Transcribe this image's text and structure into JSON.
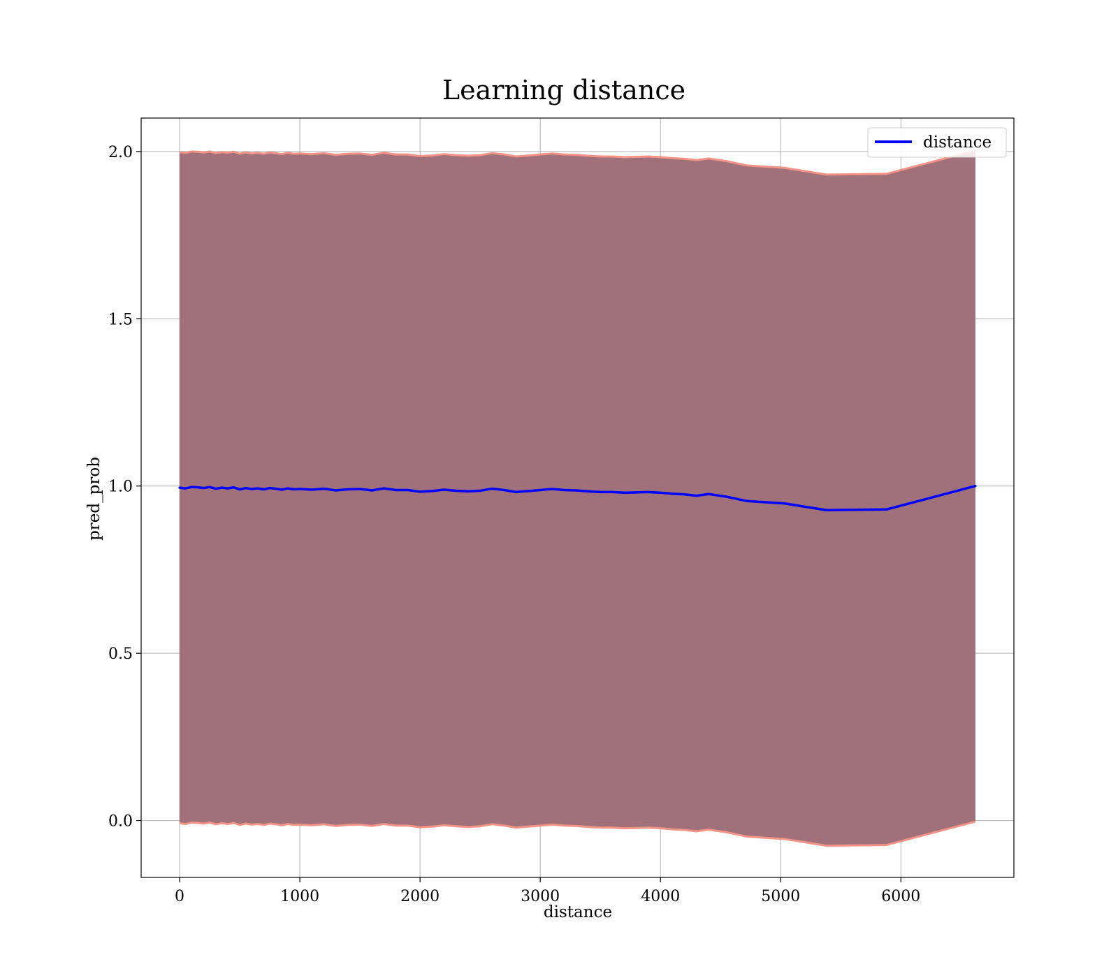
{
  "chart_data": {
    "type": "line",
    "title": "Learning distance",
    "xlabel": "distance",
    "ylabel": "pred_prob",
    "xlim": [
      -320,
      6940
    ],
    "ylim": [
      -0.17,
      2.1
    ],
    "xticks": [
      0,
      1000,
      2000,
      3000,
      4000,
      5000,
      6000
    ],
    "yticks": [
      0.0,
      0.5,
      1.0,
      1.5,
      2.0
    ],
    "xtick_labels": [
      "0",
      "1000",
      "2000",
      "3000",
      "4000",
      "5000",
      "6000"
    ],
    "ytick_labels": [
      "0.0",
      "0.5",
      "1.0",
      "1.5",
      "2.0"
    ],
    "grid": true,
    "legend_position": "top-right",
    "colors": {
      "line": "#0000ff",
      "band_outer": "#f08070",
      "band_inner": "#a0717a",
      "grid": "#b0b0b0"
    },
    "series": [
      {
        "name": "distance",
        "x": [
          0,
          50,
          100,
          150,
          200,
          250,
          300,
          350,
          400,
          450,
          500,
          550,
          600,
          650,
          700,
          750,
          800,
          850,
          900,
          950,
          1000,
          1100,
          1200,
          1300,
          1400,
          1500,
          1600,
          1700,
          1800,
          1900,
          2000,
          2100,
          2200,
          2300,
          2400,
          2500,
          2600,
          2700,
          2800,
          2900,
          3000,
          3100,
          3200,
          3300,
          3400,
          3500,
          3600,
          3700,
          3800,
          3900,
          4000,
          4100,
          4200,
          4300,
          4400,
          4550,
          4720,
          5030,
          5380,
          5880,
          6620
        ],
        "y": [
          0.995,
          0.993,
          0.997,
          0.996,
          0.994,
          0.997,
          0.992,
          0.995,
          0.993,
          0.996,
          0.99,
          0.994,
          0.991,
          0.993,
          0.99,
          0.994,
          0.992,
          0.989,
          0.993,
          0.99,
          0.991,
          0.989,
          0.992,
          0.987,
          0.99,
          0.991,
          0.987,
          0.993,
          0.988,
          0.988,
          0.983,
          0.985,
          0.989,
          0.986,
          0.984,
          0.986,
          0.992,
          0.988,
          0.982,
          0.985,
          0.988,
          0.991,
          0.988,
          0.987,
          0.984,
          0.982,
          0.982,
          0.98,
          0.981,
          0.982,
          0.98,
          0.977,
          0.975,
          0.971,
          0.976,
          0.968,
          0.955,
          0.948,
          0.928,
          0.93,
          1.0
        ]
      }
    ],
    "band": {
      "description_offset": 1.0,
      "lower_is_value_minus": 1.0,
      "upper_is_value_plus": 1.0
    }
  }
}
